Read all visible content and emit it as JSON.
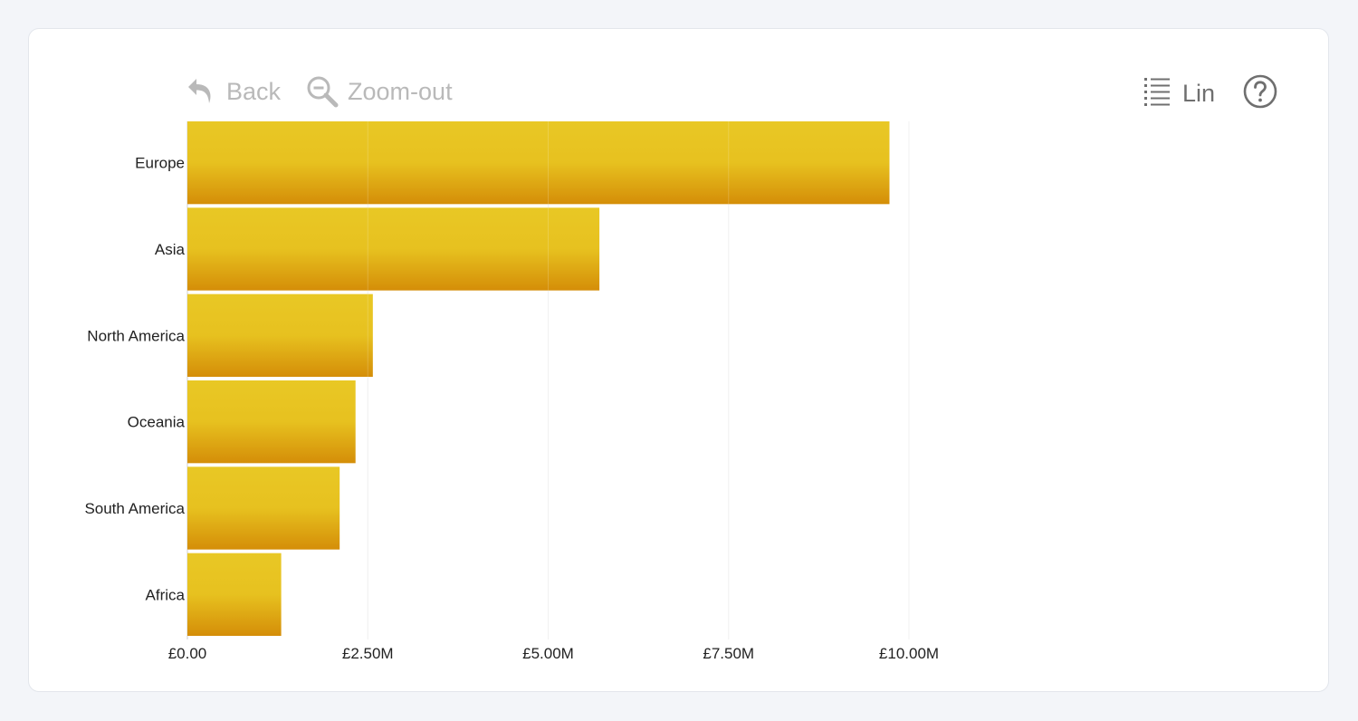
{
  "toolbar": {
    "back_label": "Back",
    "zoom_out_label": "Zoom-out",
    "mode_label": "Lin"
  },
  "icons": {
    "back": "undo-arrow-icon",
    "zoom_out": "zoom-out-icon",
    "mode": "list-icon",
    "help": "help-circle-icon"
  },
  "colors": {
    "bar_top": "#e8c61e",
    "bar_mid": "#e6bf18",
    "bar_bottom": "#d38a00",
    "toolbar_disabled": "#b9b9b9",
    "toolbar_active": "#6f6f6f",
    "grid": "#eeeeee"
  },
  "chart_data": {
    "type": "bar",
    "orientation": "horizontal",
    "categories": [
      "Europe",
      "Asia",
      "North America",
      "Oceania",
      "South America",
      "Africa"
    ],
    "values": [
      9730000,
      5710000,
      2570000,
      2330000,
      2110000,
      1300000
    ],
    "xlim": [
      0,
      10000000
    ],
    "x_ticks": [
      0,
      2500000,
      5000000,
      7500000,
      10000000
    ],
    "x_tick_labels": [
      "£0.00",
      "£2.50M",
      "£5.00M",
      "£7.50M",
      "£10.00M"
    ],
    "grid": true,
    "legend": "none"
  }
}
